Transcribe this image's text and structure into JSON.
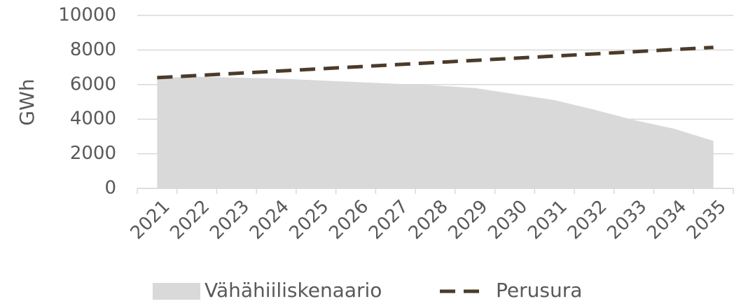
{
  "chart_data": {
    "type": "area_line",
    "categories": [
      "2021",
      "2022",
      "2023",
      "2024",
      "2025",
      "2026",
      "2027",
      "2028",
      "2029",
      "2030",
      "2031",
      "2032",
      "2033",
      "2034",
      "2035"
    ],
    "y_label": "GWh",
    "series": [
      {
        "name": "Vähähiiliskenaario",
        "type": "area",
        "color": "#d9d9d9",
        "values": [
          6400,
          6450,
          6400,
          6350,
          6250,
          6150,
          6050,
          5950,
          5800,
          5450,
          5100,
          4550,
          3950,
          3450,
          2750
        ]
      },
      {
        "name": "Perusura",
        "type": "line",
        "color": "#4b3b2a",
        "dashed": true,
        "values": [
          6400,
          6525,
          6650,
          6775,
          6900,
          7025,
          7150,
          7275,
          7400,
          7525,
          7650,
          7775,
          7900,
          8025,
          8150
        ]
      }
    ],
    "ylim": [
      0,
      10000
    ],
    "yticks": [
      0,
      2000,
      4000,
      6000,
      8000,
      10000
    ],
    "grid": true,
    "legend": "bottom"
  }
}
